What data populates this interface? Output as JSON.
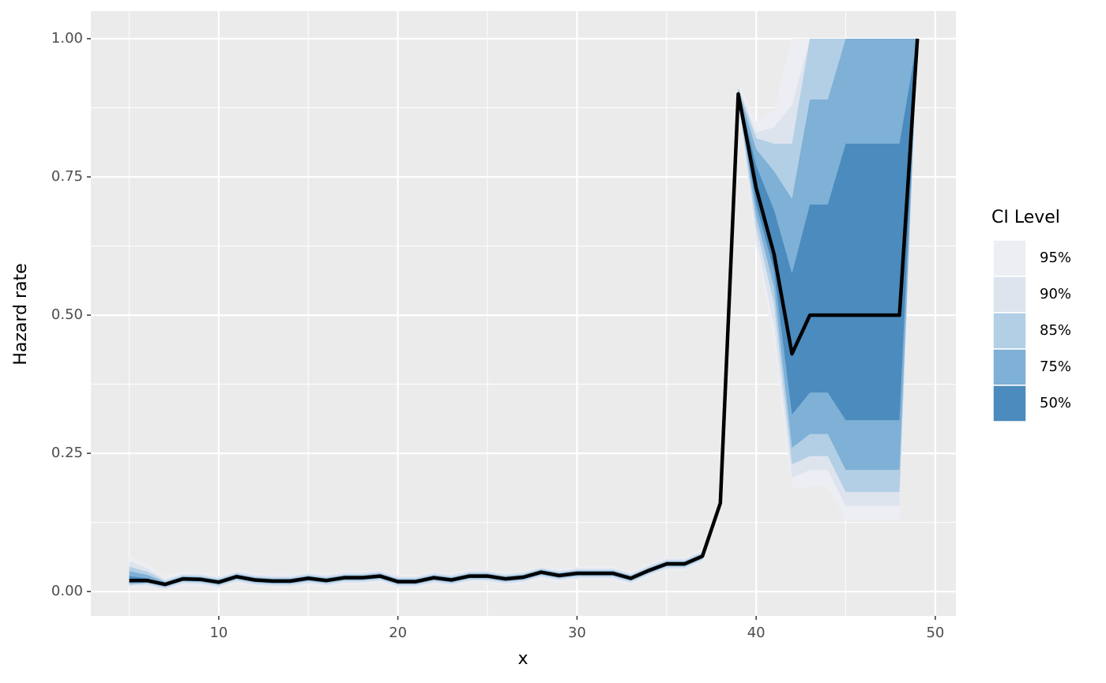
{
  "chart_data": {
    "type": "ribbon-line",
    "x_label": "x",
    "y_label": "Hazard rate",
    "legend_title": "CI Level",
    "x": [
      5,
      6,
      7,
      8,
      9,
      10,
      11,
      12,
      13,
      14,
      15,
      16,
      17,
      18,
      19,
      20,
      21,
      22,
      23,
      24,
      25,
      26,
      27,
      28,
      29,
      30,
      31,
      32,
      33,
      34,
      35,
      36,
      37,
      38,
      39,
      40,
      41,
      42,
      43,
      44,
      45,
      46,
      47,
      48,
      49
    ],
    "values": [
      0.02,
      0.02,
      0.013,
      0.023,
      0.022,
      0.017,
      0.027,
      0.021,
      0.019,
      0.019,
      0.024,
      0.02,
      0.025,
      0.025,
      0.028,
      0.018,
      0.018,
      0.025,
      0.021,
      0.028,
      0.028,
      0.023,
      0.026,
      0.035,
      0.029,
      0.033,
      0.033,
      0.033,
      0.024,
      0.038,
      0.05,
      0.05,
      0.064,
      0.16,
      0.9,
      0.73,
      0.61,
      0.43,
      0.5,
      0.5,
      0.5,
      0.5,
      0.5,
      0.5,
      1.0
    ],
    "line_color": "#000000",
    "series": [
      {
        "name": "95%",
        "color": "#edeef3",
        "lower": [
          0.008,
          0.008,
          0.004,
          0.011,
          0.01,
          0.005,
          0.015,
          0.009,
          0.007,
          0.007,
          0.012,
          0.008,
          0.013,
          0.013,
          0.016,
          0.006,
          0.006,
          0.013,
          0.009,
          0.016,
          0.016,
          0.011,
          0.014,
          0.023,
          0.017,
          0.021,
          0.021,
          0.021,
          0.012,
          0.026,
          0.038,
          0.038,
          0.052,
          0.15,
          0.88,
          0.62,
          0.45,
          0.185,
          0.19,
          0.19,
          0.13,
          0.13,
          0.13,
          0.13,
          1.0
        ],
        "upper": [
          0.065,
          0.05,
          0.027,
          0.037,
          0.035,
          0.029,
          0.04,
          0.033,
          0.031,
          0.031,
          0.036,
          0.032,
          0.037,
          0.037,
          0.04,
          0.03,
          0.03,
          0.037,
          0.033,
          0.04,
          0.04,
          0.035,
          0.038,
          0.047,
          0.041,
          0.045,
          0.045,
          0.045,
          0.036,
          0.05,
          0.062,
          0.062,
          0.078,
          0.17,
          0.92,
          0.85,
          0.87,
          1.0,
          1.0,
          1.0,
          1.0,
          1.0,
          1.0,
          1.0,
          1.0
        ]
      },
      {
        "name": "90%",
        "color": "#dde4ee",
        "lower": [
          0.01,
          0.011,
          0.004,
          0.014,
          0.013,
          0.008,
          0.018,
          0.012,
          0.01,
          0.01,
          0.015,
          0.011,
          0.016,
          0.016,
          0.019,
          0.009,
          0.009,
          0.016,
          0.012,
          0.019,
          0.019,
          0.014,
          0.017,
          0.026,
          0.02,
          0.024,
          0.024,
          0.024,
          0.015,
          0.029,
          0.041,
          0.041,
          0.055,
          0.152,
          0.885,
          0.64,
          0.48,
          0.205,
          0.22,
          0.22,
          0.155,
          0.155,
          0.155,
          0.155,
          1.0
        ],
        "upper": [
          0.055,
          0.042,
          0.022,
          0.032,
          0.031,
          0.026,
          0.036,
          0.03,
          0.028,
          0.028,
          0.033,
          0.029,
          0.034,
          0.034,
          0.037,
          0.027,
          0.027,
          0.034,
          0.03,
          0.037,
          0.037,
          0.032,
          0.035,
          0.044,
          0.038,
          0.042,
          0.042,
          0.042,
          0.033,
          0.047,
          0.059,
          0.059,
          0.073,
          0.168,
          0.915,
          0.83,
          0.84,
          0.88,
          1.0,
          1.0,
          1.0,
          1.0,
          1.0,
          1.0,
          1.0
        ]
      },
      {
        "name": "85%",
        "color": "#b3cfe5",
        "lower": [
          0.012,
          0.014,
          0.007,
          0.017,
          0.016,
          0.011,
          0.021,
          0.015,
          0.013,
          0.013,
          0.018,
          0.014,
          0.019,
          0.019,
          0.022,
          0.012,
          0.012,
          0.019,
          0.015,
          0.022,
          0.022,
          0.017,
          0.02,
          0.029,
          0.023,
          0.027,
          0.027,
          0.027,
          0.018,
          0.032,
          0.044,
          0.044,
          0.058,
          0.155,
          0.89,
          0.66,
          0.52,
          0.23,
          0.245,
          0.245,
          0.18,
          0.18,
          0.18,
          0.18,
          1.0
        ],
        "upper": [
          0.045,
          0.036,
          0.019,
          0.029,
          0.028,
          0.023,
          0.033,
          0.027,
          0.025,
          0.025,
          0.03,
          0.026,
          0.031,
          0.031,
          0.034,
          0.024,
          0.024,
          0.031,
          0.027,
          0.034,
          0.034,
          0.029,
          0.032,
          0.041,
          0.035,
          0.039,
          0.039,
          0.039,
          0.03,
          0.044,
          0.056,
          0.056,
          0.07,
          0.165,
          0.91,
          0.82,
          0.81,
          0.81,
          1.0,
          1.0,
          1.0,
          1.0,
          1.0,
          1.0,
          1.0
        ]
      },
      {
        "name": "75%",
        "color": "#7fb0d6",
        "lower": [
          0.014,
          0.016,
          0.009,
          0.019,
          0.018,
          0.013,
          0.023,
          0.017,
          0.015,
          0.015,
          0.02,
          0.016,
          0.021,
          0.021,
          0.024,
          0.014,
          0.014,
          0.021,
          0.017,
          0.024,
          0.024,
          0.019,
          0.022,
          0.031,
          0.025,
          0.029,
          0.029,
          0.029,
          0.02,
          0.034,
          0.046,
          0.046,
          0.06,
          0.157,
          0.893,
          0.68,
          0.55,
          0.26,
          0.285,
          0.285,
          0.22,
          0.22,
          0.22,
          0.22,
          1.0
        ],
        "upper": [
          0.037,
          0.03,
          0.017,
          0.027,
          0.026,
          0.021,
          0.031,
          0.025,
          0.023,
          0.023,
          0.028,
          0.024,
          0.029,
          0.029,
          0.032,
          0.022,
          0.022,
          0.029,
          0.025,
          0.032,
          0.032,
          0.027,
          0.03,
          0.039,
          0.033,
          0.037,
          0.037,
          0.037,
          0.028,
          0.042,
          0.054,
          0.054,
          0.068,
          0.163,
          0.907,
          0.8,
          0.76,
          0.71,
          0.89,
          0.89,
          1.0,
          1.0,
          1.0,
          1.0,
          1.0
        ]
      },
      {
        "name": "50%",
        "color": "#4b8bbe",
        "lower": [
          0.017,
          0.018,
          0.011,
          0.021,
          0.02,
          0.015,
          0.025,
          0.019,
          0.017,
          0.017,
          0.022,
          0.018,
          0.023,
          0.023,
          0.026,
          0.016,
          0.016,
          0.023,
          0.019,
          0.026,
          0.026,
          0.021,
          0.024,
          0.033,
          0.027,
          0.031,
          0.031,
          0.031,
          0.022,
          0.036,
          0.048,
          0.048,
          0.062,
          0.159,
          0.896,
          0.7,
          0.58,
          0.32,
          0.36,
          0.36,
          0.31,
          0.31,
          0.31,
          0.31,
          1.0
        ],
        "upper": [
          0.028,
          0.024,
          0.015,
          0.025,
          0.024,
          0.019,
          0.029,
          0.023,
          0.021,
          0.021,
          0.026,
          0.022,
          0.027,
          0.027,
          0.03,
          0.02,
          0.02,
          0.027,
          0.023,
          0.03,
          0.03,
          0.025,
          0.028,
          0.037,
          0.031,
          0.035,
          0.035,
          0.035,
          0.026,
          0.04,
          0.052,
          0.052,
          0.066,
          0.161,
          0.904,
          0.77,
          0.69,
          0.575,
          0.7,
          0.7,
          0.81,
          0.81,
          0.81,
          0.81,
          1.0
        ]
      }
    ],
    "xlim": [
      2.86,
      51.15
    ],
    "xticks": [
      10,
      20,
      30,
      40,
      50
    ],
    "ylim": [
      -0.044,
      1.05
    ],
    "yticks": [
      {
        "value": 0,
        "label": "0.00"
      },
      {
        "value": 0.25,
        "label": "0.25"
      },
      {
        "value": 0.5,
        "label": "0.50"
      },
      {
        "value": 0.75,
        "label": "0.75"
      },
      {
        "value": 1,
        "label": "1.00"
      }
    ],
    "grid": true,
    "legend": "right"
  }
}
